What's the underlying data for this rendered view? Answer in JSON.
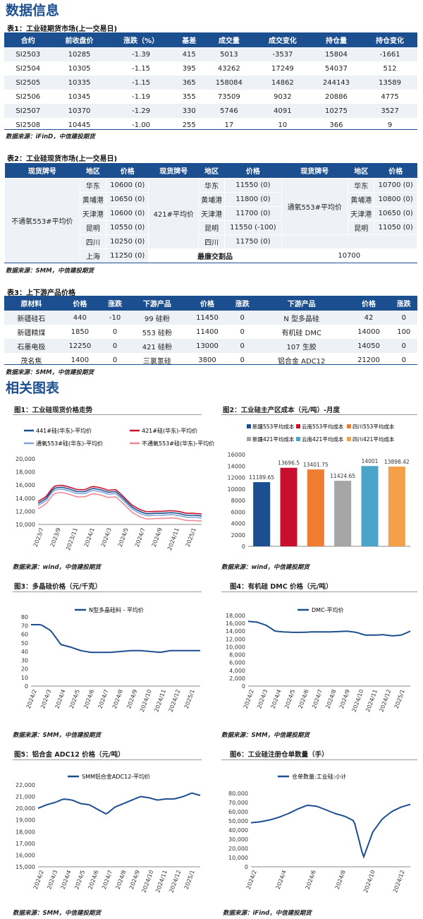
{
  "section1": "数据信息",
  "section2": "相关图表",
  "table1": {
    "caption": "表1：工业硅期货市场(上一交易日)",
    "headers": [
      "合约",
      "前收盘价",
      "涨跌（%）",
      "基差",
      "成交量",
      "成交变化",
      "持仓量",
      "持仓变化"
    ],
    "rows": [
      [
        "SI2503",
        "10285",
        "-1.39",
        "415",
        "5013",
        "-3537",
        "15804",
        "-1661"
      ],
      [
        "SI2504",
        "10305",
        "-1.15",
        "395",
        "43262",
        "17249",
        "54037",
        "512"
      ],
      [
        "SI2505",
        "10335",
        "-1.15",
        "365",
        "158084",
        "14862",
        "244143",
        "13589"
      ],
      [
        "SI2506",
        "10345",
        "-1.19",
        "355",
        "73509",
        "9032",
        "20886",
        "4775"
      ],
      [
        "SI2507",
        "10370",
        "-1.29",
        "330",
        "5746",
        "4091",
        "10275",
        "3527"
      ],
      [
        "SI2508",
        "10445",
        "-1.00",
        "255",
        "17",
        "10",
        "366",
        "9"
      ]
    ],
    "source": "数据来源：iFinD，中信建投期货"
  },
  "table2": {
    "caption": "表2：工业硅现货市场(上一交易日)",
    "headers": [
      "现货牌号",
      "地区",
      "价格",
      "现货牌号",
      "地区",
      "价格",
      "现货牌号",
      "地区",
      "价格"
    ],
    "g1_name": "不通氧553#平均价",
    "g1": [
      [
        "华东",
        "10600 (0)"
      ],
      [
        "黄埔港",
        "10650 (0)"
      ],
      [
        "天津港",
        "10600 (0)"
      ],
      [
        "昆明",
        "10550 (0)"
      ],
      [
        "四川",
        "10250 (0)"
      ],
      [
        "上海",
        "11250 (0)"
      ]
    ],
    "g2_name": "421#平均价",
    "g2": [
      [
        "华东",
        "11550 (0)"
      ],
      [
        "黄埔港",
        "11800 (0)"
      ],
      [
        "天津港",
        "11700 (0)"
      ],
      [
        "昆明",
        "11550 (-100)"
      ],
      [
        "四川",
        "11750 (0)"
      ]
    ],
    "g3_name": "通氧553#平均价",
    "g3": [
      [
        "华东",
        "10700 (0)"
      ],
      [
        "黄埔港",
        "10800 (0)"
      ],
      [
        "天津港",
        "10650 (0)"
      ],
      [
        "昆明",
        "11050 (0)"
      ]
    ],
    "cheap_label": "最廉交割品",
    "cheap_value": "10700",
    "source": "数据来源：SMM，中信建投期货"
  },
  "table3": {
    "caption": "表3：上下游产品价格",
    "headers": [
      "原材料",
      "价格",
      "涨跌",
      "下游产品",
      "价格",
      "涨跌",
      "下游产品",
      "价格",
      "涨跌"
    ],
    "rows": [
      [
        "新疆硅石",
        "440",
        "-10",
        "99 硅粉",
        "11450",
        "0",
        "N 型多晶硅",
        "42",
        "0"
      ],
      [
        "新疆精煤",
        "1850",
        "0",
        "553 硅粉",
        "11400",
        "0",
        "有机硅 DMC",
        "14000",
        "100"
      ],
      [
        "石墨电极",
        "12250",
        "0",
        "421 硅粉",
        "13000",
        "0",
        "107 生胶",
        "14050",
        "0"
      ],
      [
        "茂名焦",
        "1400",
        "0",
        "三氯氢硅",
        "3800",
        "0",
        "铝合金 ADC12",
        "21200",
        "0"
      ]
    ],
    "source": "数据来源：SMM，中信建投期货"
  },
  "chart_data": [
    {
      "type": "line",
      "title": "图1：工业硅现货价格走势",
      "series": [
        {
          "name": "441#硅(华东)-平均价",
          "color": "#1c4f8f"
        },
        {
          "name": "421#硅(华东)-平均价",
          "color": "#c8102e"
        },
        {
          "name": "通氧553#硅(华东)-平均价",
          "color": "#7fa6d6"
        },
        {
          "name": "不通氧553#硅(华东)-平均价",
          "color": "#f08a94"
        }
      ],
      "x": [
        "2023/7",
        "2023/9",
        "2023/11",
        "2024/1",
        "2024/3",
        "2024/5",
        "2024/7",
        "2024/9",
        "2024/11",
        "2025/1"
      ],
      "yticks": [
        "20,000",
        "18,000",
        "16,000",
        "14,000",
        "12,000",
        "10,000"
      ],
      "ylim": [
        10000,
        20000
      ],
      "source": "数据来源：wind，中信建投期货"
    },
    {
      "type": "bar",
      "title": "图2：工业硅主产区成本（元/吨）-月度",
      "categories": [
        "新疆553平均成本",
        "云南553平均成本",
        "四川553平均成本",
        "新疆421平均成本",
        "云南421平均成本",
        "四川421平均成本"
      ],
      "values": [
        11189.65,
        13696.5,
        13401.75,
        11424.65,
        14001,
        13898.42
      ],
      "labels": [
        "11189.65",
        "13696.5",
        "13401.75",
        "11424.65",
        "14001",
        "13898.42"
      ],
      "colors": [
        "#1c4f8f",
        "#c8102e",
        "#ee7d31",
        "#a5a5a5",
        "#4aa3c8",
        "#f4a04a"
      ],
      "yticks": [
        "16000",
        "14000",
        "12000",
        "10000",
        "8000",
        "6000",
        "4000",
        "2000",
        "0"
      ],
      "ylim": [
        0,
        16000
      ],
      "source": "数据来源：wind，中信建投期货"
    },
    {
      "type": "line",
      "title": "图3：多晶硅价格（元/千克）",
      "series": [
        {
          "name": "N型多晶硅料 - 平均价",
          "color": "#1c4f8f"
        }
      ],
      "x": [
        "2024/2",
        "2024/3",
        "2024/4",
        "2024/5",
        "2024/6",
        "2024/7",
        "2024/8",
        "2024/9",
        "2024/10",
        "2024/11",
        "2024/12",
        "2025/1"
      ],
      "yticks": [
        "80",
        "70",
        "60",
        "50",
        "40",
        "30",
        "20",
        "10",
        "0"
      ],
      "ylim": [
        0,
        80
      ],
      "source": "数据来源：SMM，中信建投期货"
    },
    {
      "type": "line",
      "title": "图4：有机硅 DMC 价格（元/吨）",
      "series": [
        {
          "name": "DMC-平均价",
          "color": "#1c4f8f"
        }
      ],
      "x": [
        "2024/2",
        "2024/3",
        "2024/4",
        "2024/5",
        "2024/6",
        "2024/7",
        "2024/8",
        "2024/9",
        "2024/10",
        "2024/11",
        "2024/12",
        "2025/1"
      ],
      "yticks": [
        "18,000",
        "16,000",
        "14,000",
        "12,000",
        "10,000",
        "8,000",
        "6,000",
        "4,000",
        "2,000",
        "0"
      ],
      "ylim": [
        0,
        18000
      ],
      "source": "数据来源：SMM，中信建投期货"
    },
    {
      "type": "line",
      "title": "图5：铝合金 ADC12 价格（元/吨）",
      "series": [
        {
          "name": "SMM铝合金ADC12-平均价",
          "color": "#1c4f8f"
        }
      ],
      "x": [
        "2024/2",
        "2024/3",
        "2024/4",
        "2024/5",
        "2024/6",
        "2024/7",
        "2024/8",
        "2024/9",
        "2024/10",
        "2024/11",
        "2024/12",
        "2025/1"
      ],
      "yticks": [
        "22,000",
        "21,000",
        "20,000",
        "19,000",
        "18,000",
        "17,000",
        "16,000",
        "15,000"
      ],
      "ylim": [
        15000,
        22000
      ],
      "source": "数据来源：SMM，中信建投期货"
    },
    {
      "type": "line",
      "title": "图6：工业硅注册仓单数量（手）",
      "series": [
        {
          "name": "仓单数量:工业硅:小计",
          "color": "#1c4f8f"
        }
      ],
      "x": [
        "2024/2",
        "2024/4",
        "2024/6",
        "2024/8",
        "2024/10",
        "2024/12"
      ],
      "yticks": [
        "80,000",
        "70,000",
        "60,000",
        "50,000",
        "40,000",
        "30,000",
        "20,000",
        "10,000",
        "0"
      ],
      "ylim": [
        0,
        80000
      ],
      "source": "数据来源：iFind，中信建投期货"
    }
  ]
}
